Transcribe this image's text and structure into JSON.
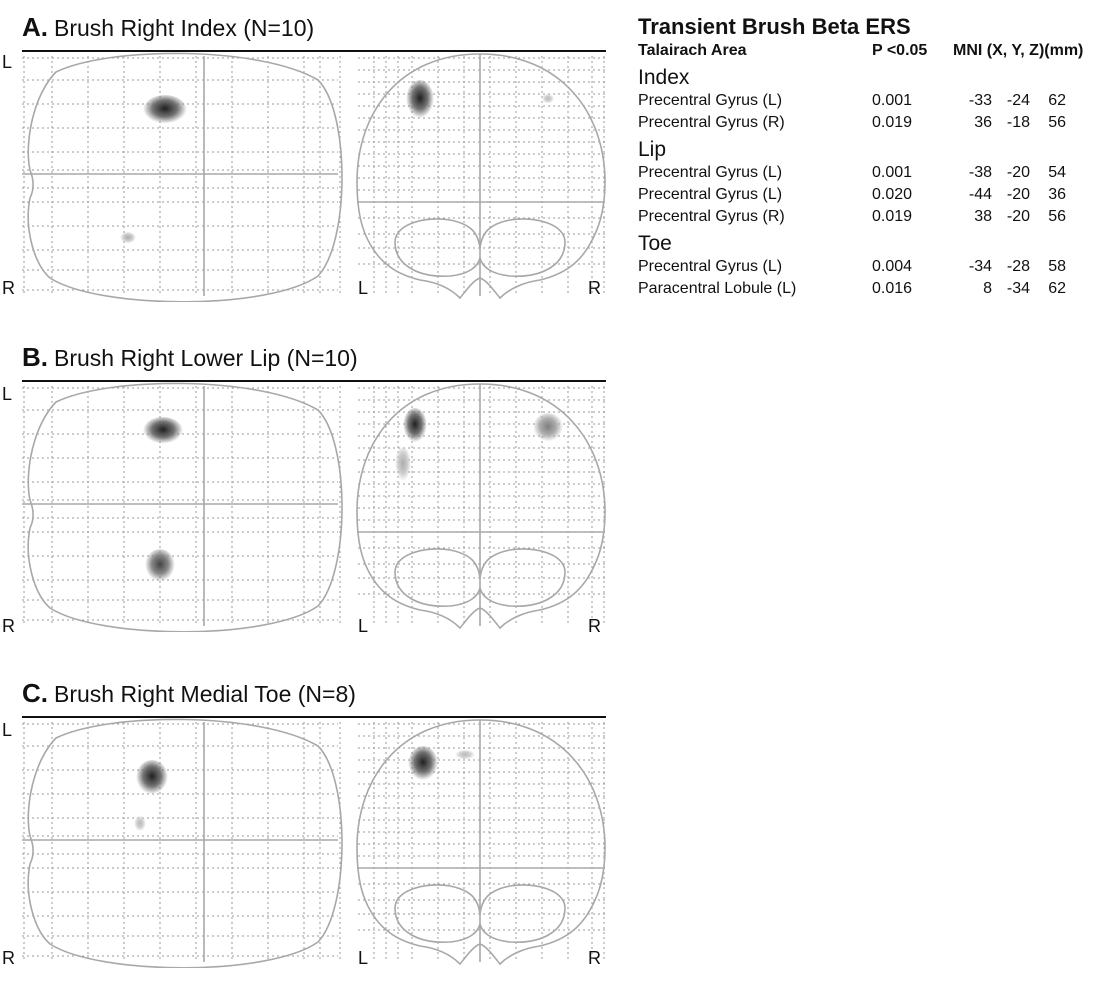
{
  "panels": [
    {
      "letter": "A.",
      "title": "Brush Right Index (N=10)",
      "labels": {
        "sag_top": "L",
        "sag_bottom": "R",
        "cor_left": "L",
        "cor_right": "R"
      },
      "blobs": {
        "sagittal": [
          {
            "x": 165,
            "y": 58,
            "rx": 22,
            "ry": 15,
            "intensity": 0.95
          },
          {
            "x": 128,
            "y": 186,
            "rx": 8,
            "ry": 6,
            "intensity": 0.35
          }
        ],
        "coronal": [
          {
            "x": 420,
            "y": 48,
            "rx": 14,
            "ry": 20,
            "intensity": 0.95
          },
          {
            "x": 548,
            "y": 47,
            "rx": 6,
            "ry": 5,
            "intensity": 0.3
          }
        ]
      }
    },
    {
      "letter": "B.",
      "title": "Brush Right Lower Lip (N=10)",
      "labels": {
        "sag_top": "L",
        "sag_bottom": "R",
        "cor_left": "L",
        "cor_right": "R"
      },
      "blobs": {
        "sagittal": [
          {
            "x": 163,
            "y": 49,
            "rx": 20,
            "ry": 14,
            "intensity": 0.95
          },
          {
            "x": 160,
            "y": 184,
            "rx": 15,
            "ry": 17,
            "intensity": 0.8
          }
        ],
        "coronal": [
          {
            "x": 415,
            "y": 44,
            "rx": 12,
            "ry": 18,
            "intensity": 0.95
          },
          {
            "x": 403,
            "y": 83,
            "rx": 8,
            "ry": 18,
            "intensity": 0.35
          },
          {
            "x": 548,
            "y": 46,
            "rx": 15,
            "ry": 15,
            "intensity": 0.55
          }
        ]
      }
    },
    {
      "letter": "C.",
      "title": "Brush Right Medial Toe (N=8)",
      "labels": {
        "sag_top": "L",
        "sag_bottom": "R",
        "cor_left": "L",
        "cor_right": "R"
      },
      "blobs": {
        "sagittal": [
          {
            "x": 152,
            "y": 60,
            "rx": 16,
            "ry": 18,
            "intensity": 0.95
          },
          {
            "x": 140,
            "y": 106,
            "rx": 6,
            "ry": 8,
            "intensity": 0.3
          }
        ],
        "coronal": [
          {
            "x": 423,
            "y": 46,
            "rx": 15,
            "ry": 18,
            "intensity": 0.95
          },
          {
            "x": 465,
            "y": 37,
            "rx": 10,
            "ry": 5,
            "intensity": 0.3
          }
        ]
      }
    }
  ],
  "table": {
    "title": "Transient Brush Beta ERS",
    "headers": {
      "area": "Talairach Area",
      "p": "P <0.05",
      "mni": "MNI (X, Y, Z)(mm)"
    },
    "sections": [
      {
        "name": "Index",
        "rows": [
          {
            "area": "Precentral Gyrus (L)",
            "p": "0.001",
            "x": "-33",
            "y": "-24",
            "z": "62"
          },
          {
            "area": "Precentral Gyrus (R)",
            "p": "0.019",
            "x": "36",
            "y": "-18",
            "z": "56"
          }
        ]
      },
      {
        "name": "Lip",
        "rows": [
          {
            "area": "Precentral Gyrus (L)",
            "p": "0.001",
            "x": "-38",
            "y": "-20",
            "z": "54"
          },
          {
            "area": "Precentral Gyrus (L)",
            "p": "0.020",
            "x": "-44",
            "y": "-20",
            "z": "36"
          },
          {
            "area": "Precentral Gyrus (R)",
            "p": "0.019",
            "x": "38",
            "y": "-20",
            "z": "56"
          }
        ]
      },
      {
        "name": "Toe",
        "rows": [
          {
            "area": "Precentral Gyrus (L)",
            "p": "0.004",
            "x": "-34",
            "y": "-28",
            "z": "58"
          },
          {
            "area": "Paracentral Lobule (L)",
            "p": "0.016",
            "x": "8",
            "y": "-34",
            "z": "62"
          }
        ]
      }
    ]
  }
}
